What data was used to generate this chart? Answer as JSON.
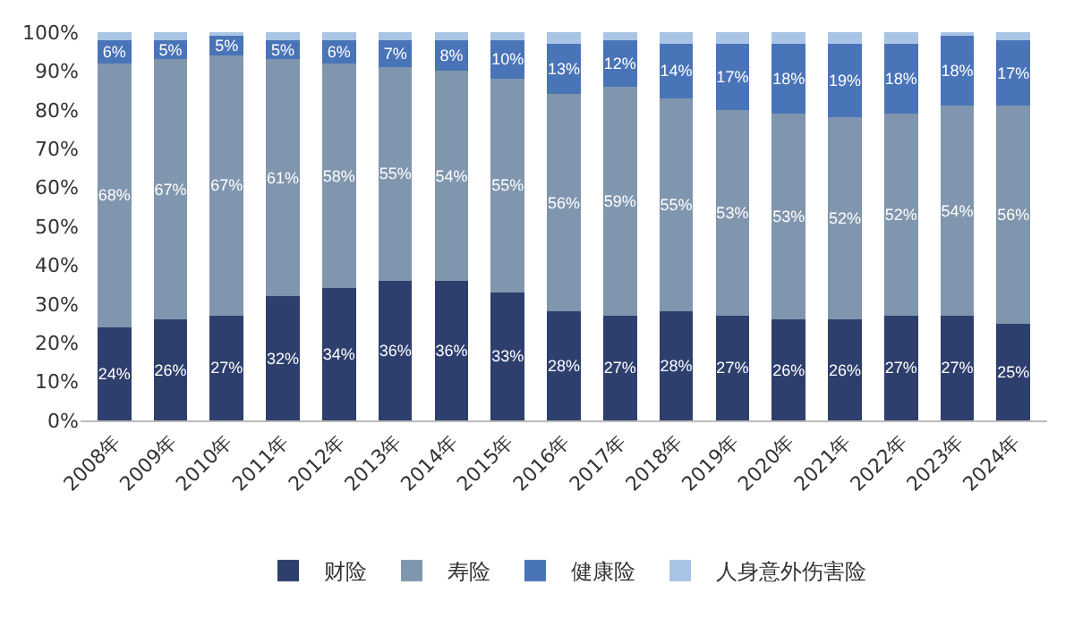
{
  "chart_data": {
    "type": "bar",
    "stacked": true,
    "categories": [
      "2008年",
      "2009年",
      "2010年",
      "2011年",
      "2012年",
      "2013年",
      "2014年",
      "2015年",
      "2016年",
      "2017年",
      "2018年",
      "2019年",
      "2020年",
      "2021年",
      "2022年",
      "2023年",
      "2024年"
    ],
    "series": [
      {
        "name": "财险",
        "color": "#2e3f6e",
        "values": [
          24,
          26,
          27,
          32,
          34,
          36,
          36,
          33,
          28,
          27,
          28,
          27,
          26,
          26,
          27,
          27,
          25
        ],
        "value_labels": [
          "24%",
          "26%",
          "27%",
          "32%",
          "34%",
          "36%",
          "36%",
          "33%",
          "28%",
          "27%",
          "28%",
          "27%",
          "26%",
          "26%",
          "27%",
          "27%",
          "25%"
        ]
      },
      {
        "name": "寿险",
        "color": "#8096ae",
        "values": [
          68,
          67,
          67,
          61,
          58,
          55,
          54,
          55,
          56,
          59,
          55,
          53,
          53,
          52,
          52,
          54,
          56
        ],
        "value_labels": [
          "68%",
          "67%",
          "67%",
          "61%",
          "58%",
          "55%",
          "54%",
          "55%",
          "56%",
          "59%",
          "55%",
          "53%",
          "53%",
          "52%",
          "52%",
          "54%",
          "56%"
        ]
      },
      {
        "name": "健康险",
        "color": "#4a74b8",
        "values": [
          6,
          5,
          5,
          5,
          6,
          7,
          8,
          10,
          13,
          12,
          14,
          17,
          18,
          19,
          18,
          18,
          17
        ],
        "value_labels": [
          "6%",
          "5%",
          "5%",
          "5%",
          "6%",
          "7%",
          "8%",
          "10%",
          "13%",
          "12%",
          "14%",
          "17%",
          "18%",
          "19%",
          "18%",
          "18%",
          "17%"
        ]
      },
      {
        "name": "人身意外伤害险",
        "color": "#a9c4e4",
        "values": [
          2,
          2,
          1,
          2,
          2,
          2,
          2,
          2,
          3,
          2,
          3,
          3,
          3,
          3,
          3,
          1,
          2
        ]
      }
    ],
    "ylim": [
      0,
      100
    ],
    "yticks": [
      {
        "value": 0,
        "label": "0%"
      },
      {
        "value": 10,
        "label": "10%"
      },
      {
        "value": 20,
        "label": "20%"
      },
      {
        "value": 30,
        "label": "30%"
      },
      {
        "value": 40,
        "label": "40%"
      },
      {
        "value": 50,
        "label": "50%"
      },
      {
        "value": 60,
        "label": "60%"
      },
      {
        "value": 70,
        "label": "70%"
      },
      {
        "value": 80,
        "label": "80%"
      },
      {
        "value": 90,
        "label": "90%"
      },
      {
        "value": 100,
        "label": "100%"
      }
    ],
    "legend": "bottom"
  }
}
